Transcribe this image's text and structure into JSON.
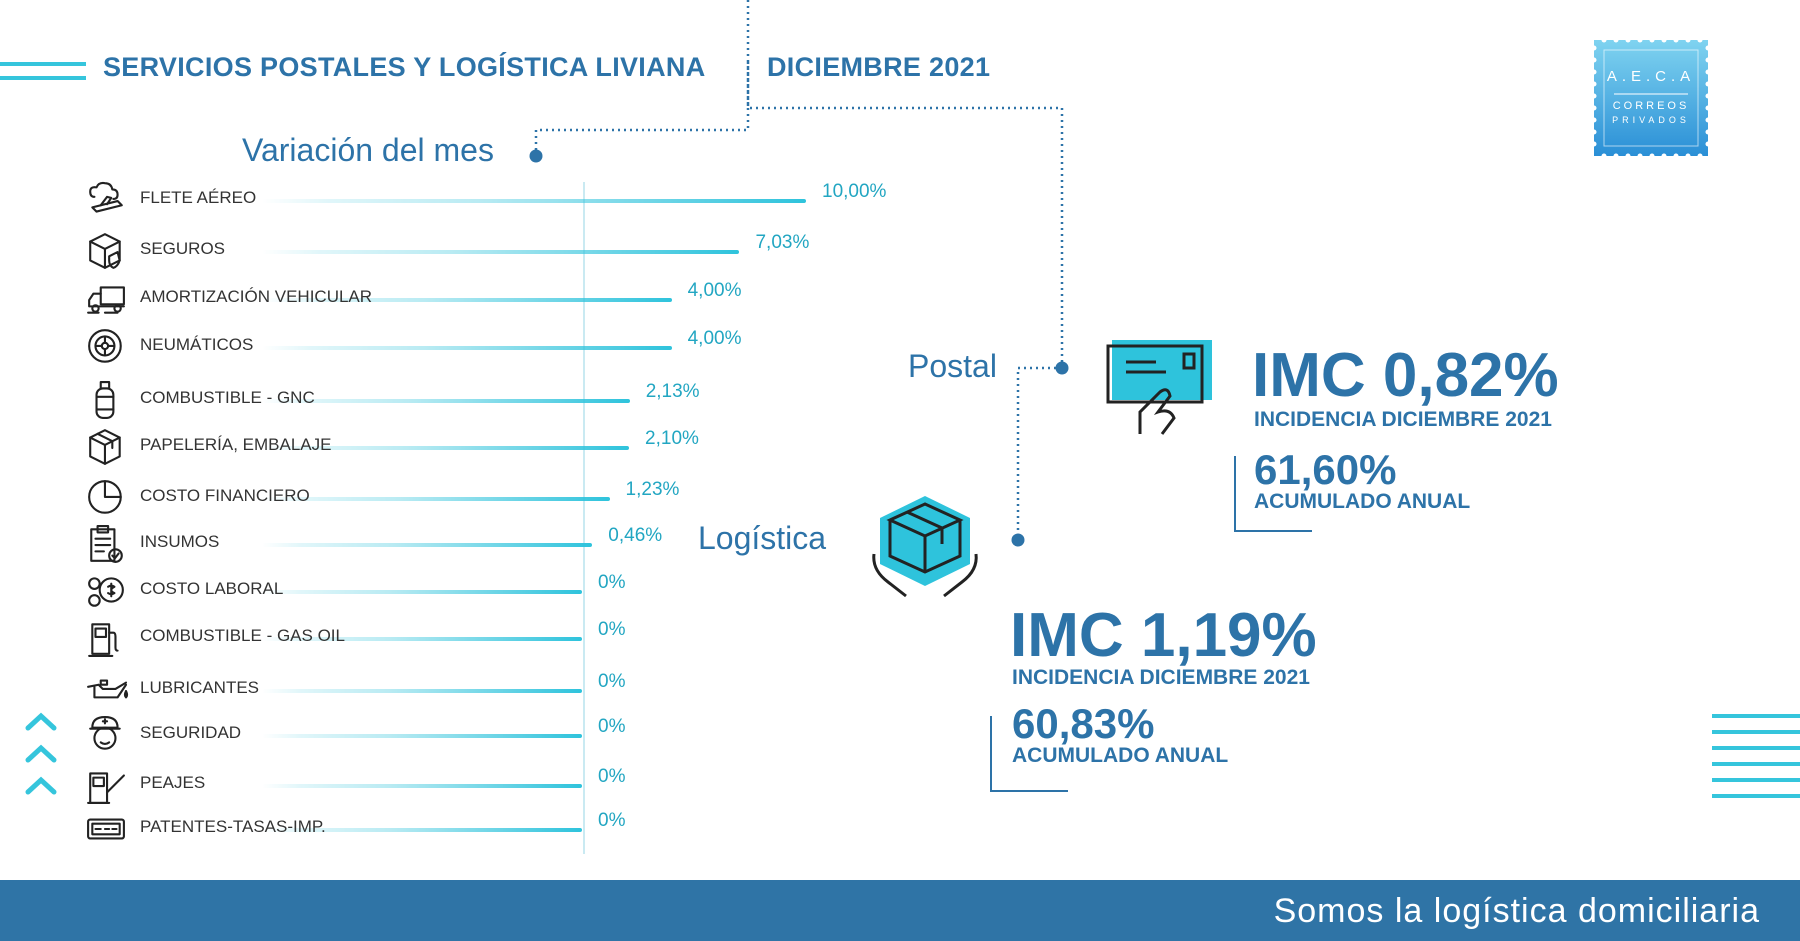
{
  "header": {
    "title": "SERVICIOS POSTALES Y LOGÍSTICA LIVIANA",
    "period": "DICIEMBRE 2021"
  },
  "logo": {
    "line1": "A.E.C.A",
    "line2": "CORREOS",
    "line3": "PRIVADOS"
  },
  "labels": {
    "variacion": "Variación del mes",
    "postal": "Postal",
    "logistica": "Logística"
  },
  "postal": {
    "imc": "IMC 0,82%",
    "incidencia": "INCIDENCIA DICIEMBRE 2021",
    "acumulado_value": "61,60%",
    "acumulado_label": "ACUMULADO ANUAL"
  },
  "logistica": {
    "imc": "IMC 1,19%",
    "incidencia": "INCIDENCIA DICIEMBRE 2021",
    "acumulado_value": "60,83%",
    "acumulado_label": "ACUMULADO ANUAL"
  },
  "footer": {
    "tagline": "Somos la logística domiciliaria"
  },
  "colors": {
    "accent": "#35c5dc",
    "primary": "#2d73a8",
    "footer": "#2f74a6"
  },
  "chart_data": {
    "type": "bar",
    "orientation": "horizontal",
    "categories": [
      "FLETE AÉREO",
      "SEGUROS",
      "AMORTIZACIÓN VEHICULAR",
      "NEUMÁTICOS",
      "COMBUSTIBLE - GNC",
      "PAPELERÍA, EMBALAJE",
      "COSTO FINANCIERO",
      "INSUMOS",
      "COSTO LABORAL",
      "COMBUSTIBLE - GAS OIL",
      "LUBRICANTES",
      "SEGURIDAD",
      "PEAJES",
      "PATENTES-TASAS-IMP."
    ],
    "values": [
      10.0,
      7.03,
      4.0,
      4.0,
      2.13,
      2.1,
      1.23,
      0.46,
      0,
      0,
      0,
      0,
      0,
      0
    ],
    "value_labels": [
      "10,00%",
      "7,03%",
      "4,00%",
      "4,00%",
      "2,13%",
      "2,10%",
      "1,23%",
      "0,46%",
      "0%",
      "0%",
      "0%",
      "0%",
      "0%",
      "0%"
    ],
    "icons": [
      "airplane-cloud-icon",
      "shield-box-icon",
      "truck-icon",
      "tire-icon",
      "gas-cylinder-icon",
      "package-icon",
      "pie-chart-icon",
      "clipboard-check-icon",
      "coins-icon",
      "fuel-pump-icon",
      "oil-can-icon",
      "security-guard-icon",
      "toll-booth-icon",
      "license-plate-icon"
    ],
    "title": "Variación del mes"
  }
}
